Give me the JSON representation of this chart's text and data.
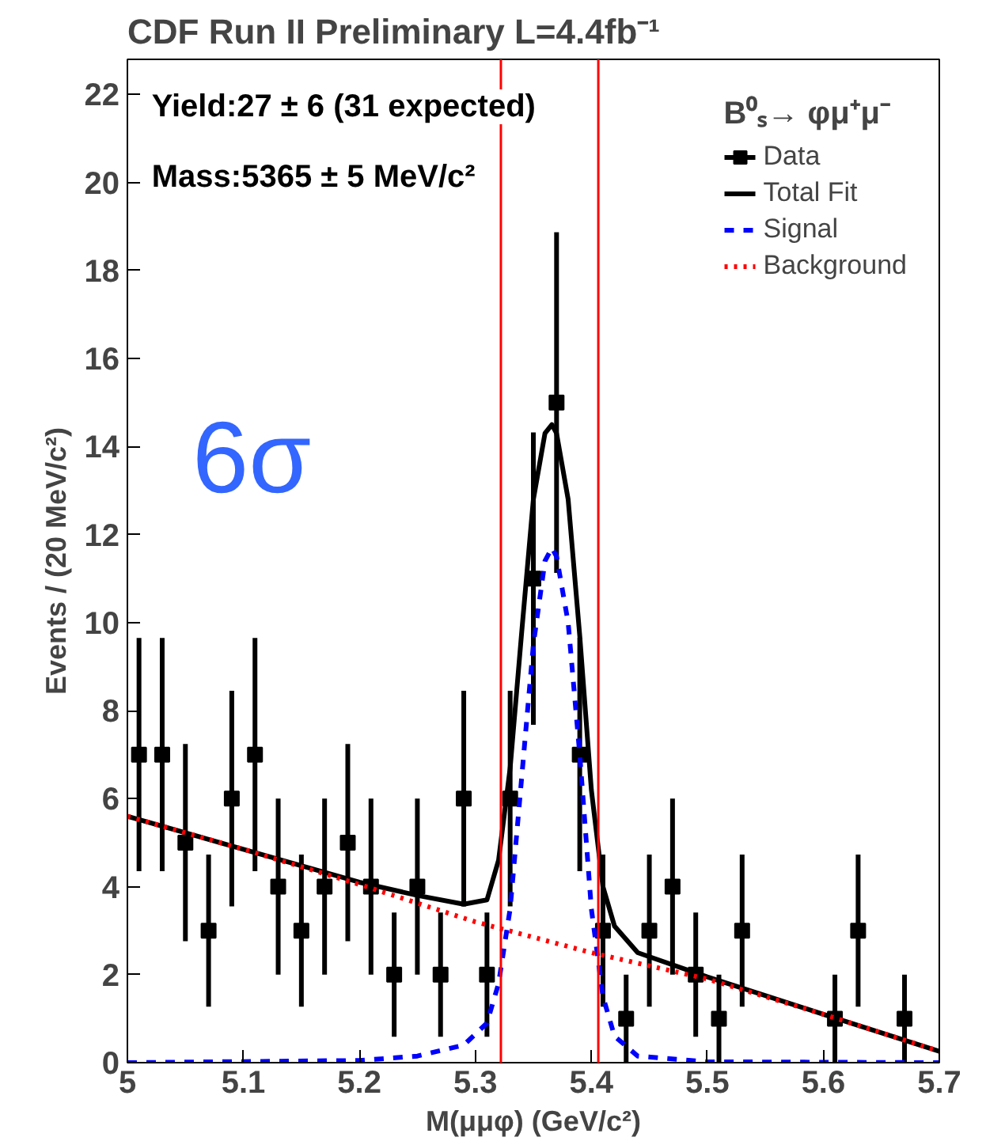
{
  "chart_data": {
    "type": "scatter",
    "title": "CDF Run II Preliminary L=4.4fb⁻¹",
    "xlabel": "M(μμφ) (GeV/c²)",
    "ylabel": "Events / (20 MeV/c²)",
    "legend_title": "B⁰ₛ→ φμ⁺μ⁻",
    "annotations": [
      "Yield:27 ± 6 (31 expected)",
      "Mass:5365 ± 5 MeV/c²",
      "6σ"
    ],
    "xlim": [
      5,
      5.7
    ],
    "xticks": [
      5,
      5.1,
      5.2,
      5.3,
      5.4,
      5.5,
      5.6,
      5.7
    ],
    "ylim": [
      0,
      22.8
    ],
    "yticks": [
      0,
      2,
      4,
      6,
      8,
      10,
      12,
      14,
      16,
      18,
      20,
      22
    ],
    "legend": "top right",
    "grid": false,
    "series": [
      {
        "name": "Data",
        "marker": "square",
        "color": "#000000",
        "x": [
          5.01,
          5.03,
          5.05,
          5.07,
          5.09,
          5.11,
          5.13,
          5.15,
          5.17,
          5.19,
          5.21,
          5.23,
          5.25,
          5.27,
          5.29,
          5.31,
          5.33,
          5.35,
          5.37,
          5.39,
          5.41,
          5.43,
          5.45,
          5.47,
          5.49,
          5.51,
          5.53,
          5.61,
          5.63,
          5.67
        ],
        "values": [
          7,
          7,
          5,
          3,
          6,
          7,
          4,
          3,
          4,
          5,
          4,
          2,
          4,
          2,
          6,
          2,
          6,
          11,
          15,
          7,
          3,
          1,
          3,
          4,
          2,
          1,
          3,
          1,
          3,
          1
        ],
        "errors": [
          2.65,
          2.65,
          2.24,
          1.73,
          2.45,
          2.65,
          2,
          1.73,
          2,
          2.24,
          2,
          1.41,
          2,
          1.41,
          2.45,
          1.41,
          2.45,
          3.32,
          3.87,
          2.65,
          1.73,
          1,
          1.73,
          2,
          1.41,
          1,
          1.73,
          1,
          1.73,
          1
        ]
      },
      {
        "name": "Total Fit",
        "type": "line",
        "line_style": "solid",
        "color": "#000000",
        "x": [
          5.0,
          5.1,
          5.2,
          5.25,
          5.29,
          5.31,
          5.32,
          5.33,
          5.34,
          5.35,
          5.36,
          5.366,
          5.37,
          5.38,
          5.39,
          5.4,
          5.41,
          5.42,
          5.44,
          5.5,
          5.6,
          5.7
        ],
        "values": [
          5.6,
          4.85,
          4.1,
          3.8,
          3.6,
          3.7,
          4.6,
          6.7,
          9.8,
          12.8,
          14.3,
          14.5,
          14.3,
          12.8,
          9.7,
          6.2,
          4.0,
          3.1,
          2.5,
          1.95,
          1.1,
          0.26
        ]
      },
      {
        "name": "Signal",
        "type": "line",
        "line_style": "dashed",
        "color": "#0000ff",
        "x": [
          5.0,
          5.2,
          5.25,
          5.29,
          5.31,
          5.32,
          5.33,
          5.34,
          5.35,
          5.36,
          5.366,
          5.37,
          5.38,
          5.39,
          5.4,
          5.41,
          5.42,
          5.44,
          5.5,
          5.7
        ],
        "values": [
          0,
          0.05,
          0.15,
          0.4,
          0.9,
          1.8,
          3.5,
          6.5,
          9.5,
          11.4,
          11.7,
          11.5,
          10,
          7,
          3.5,
          1.5,
          0.6,
          0.15,
          0.02,
          0
        ]
      },
      {
        "name": "Background",
        "type": "line",
        "line_style": "dotted",
        "color": "#ff0000",
        "x": [
          5.0,
          5.1,
          5.2,
          5.3,
          5.4,
          5.5,
          5.6,
          5.7
        ],
        "values": [
          5.6,
          4.85,
          4.05,
          3.2,
          2.5,
          1.9,
          1.1,
          0.26
        ]
      }
    ],
    "ref_lines": [
      {
        "axis": "x",
        "value": 5.322,
        "color": "#ff0000"
      },
      {
        "axis": "x",
        "value": 5.406,
        "color": "#ff0000"
      }
    ]
  }
}
